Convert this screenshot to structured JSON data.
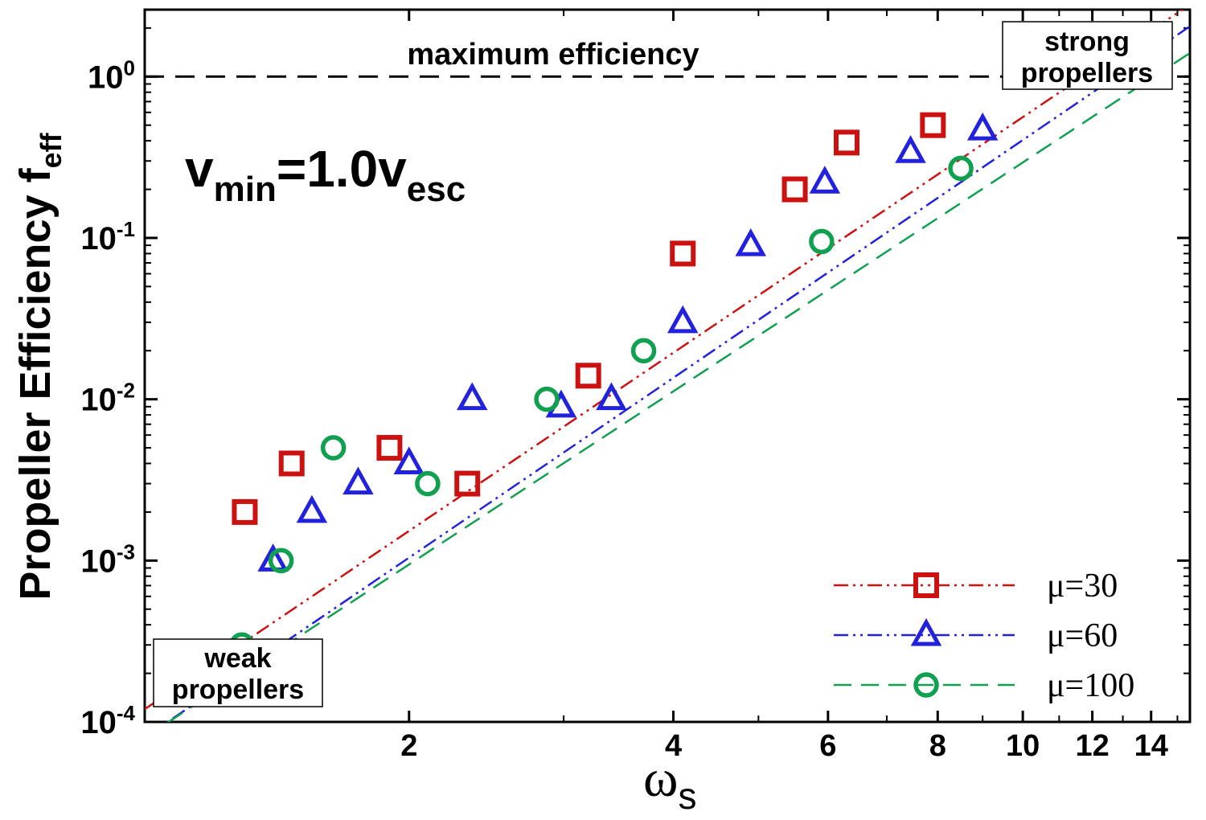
{
  "chart_data": {
    "type": "scatter",
    "xscale": "log",
    "yscale": "log",
    "xlim": [
      1.0,
      15.5
    ],
    "ylim": [
      0.0001,
      2.6
    ],
    "xlabel": "ω",
    "xlabel_sub": "s",
    "ylabel": "Propeller Efficiency  f",
    "ylabel_sub": "eff",
    "title_main": "v",
    "title_sub1": "min",
    "title_mid": "=1.0v",
    "title_sub2": "esc",
    "x_ticks": [
      {
        "value": 2,
        "label": "2"
      },
      {
        "value": 4,
        "label": "4"
      },
      {
        "value": 6,
        "label": "6"
      },
      {
        "value": 8,
        "label": "8"
      },
      {
        "value": 10,
        "label": "10"
      },
      {
        "value": 12,
        "label": "12"
      },
      {
        "value": 14,
        "label": "14"
      }
    ],
    "y_ticks": [
      {
        "value": 0.0001,
        "base": "10",
        "exp": "-4"
      },
      {
        "value": 0.001,
        "base": "10",
        "exp": "-3"
      },
      {
        "value": 0.01,
        "base": "10",
        "exp": "-2"
      },
      {
        "value": 0.1,
        "base": "10",
        "exp": "-1"
      },
      {
        "value": 1,
        "base": "10",
        "exp": "0"
      }
    ],
    "reference_line": {
      "y": 1.0,
      "label": "maximum efficiency",
      "color": "#000000"
    },
    "annotations": {
      "strong": [
        "strong",
        "propellers"
      ],
      "weak": [
        "weak",
        "propellers"
      ]
    },
    "series": [
      {
        "name": "μ=30",
        "label": "μ=30",
        "marker": "square",
        "color": "#cc1111",
        "line_style": "dash-dot-dot",
        "points": [
          {
            "x": 1.3,
            "y": 0.002
          },
          {
            "x": 1.47,
            "y": 0.004
          },
          {
            "x": 1.9,
            "y": 0.005
          },
          {
            "x": 2.33,
            "y": 0.003
          },
          {
            "x": 3.2,
            "y": 0.014
          },
          {
            "x": 4.1,
            "y": 0.08
          },
          {
            "x": 5.5,
            "y": 0.2
          },
          {
            "x": 6.3,
            "y": 0.39
          },
          {
            "x": 7.9,
            "y": 0.5
          }
        ],
        "fit": [
          {
            "x": 1.0,
            "y": 0.00012
          },
          {
            "x": 15.5,
            "y": 2.8
          }
        ]
      },
      {
        "name": "μ=60",
        "label": "μ=60",
        "marker": "triangle",
        "color": "#2222dd",
        "line_style": "dash-dot-dot",
        "points": [
          {
            "x": 1.4,
            "y": 0.001
          },
          {
            "x": 1.55,
            "y": 0.002
          },
          {
            "x": 1.75,
            "y": 0.003
          },
          {
            "x": 2.0,
            "y": 0.004
          },
          {
            "x": 2.36,
            "y": 0.01
          },
          {
            "x": 2.98,
            "y": 0.009
          },
          {
            "x": 3.4,
            "y": 0.01
          },
          {
            "x": 4.1,
            "y": 0.03
          },
          {
            "x": 4.9,
            "y": 0.09
          },
          {
            "x": 5.95,
            "y": 0.22
          },
          {
            "x": 7.45,
            "y": 0.34
          },
          {
            "x": 9.0,
            "y": 0.47
          }
        ],
        "fit": [
          {
            "x": 1.0,
            "y": 8e-05
          },
          {
            "x": 15.5,
            "y": 2.05
          }
        ]
      },
      {
        "name": "μ=100",
        "label": "μ=100",
        "marker": "circle",
        "color": "#11a050",
        "line_style": "dashed",
        "points": [
          {
            "x": 1.29,
            "y": 0.0003
          },
          {
            "x": 1.43,
            "y": 0.001
          },
          {
            "x": 1.64,
            "y": 0.005
          },
          {
            "x": 2.1,
            "y": 0.003
          },
          {
            "x": 2.87,
            "y": 0.01
          },
          {
            "x": 3.7,
            "y": 0.02
          },
          {
            "x": 5.9,
            "y": 0.095
          },
          {
            "x": 8.5,
            "y": 0.27
          }
        ],
        "fit": [
          {
            "x": 1.0,
            "y": 8e-05
          },
          {
            "x": 15.5,
            "y": 1.4
          }
        ]
      }
    ],
    "legend_position": "bottom-right"
  }
}
